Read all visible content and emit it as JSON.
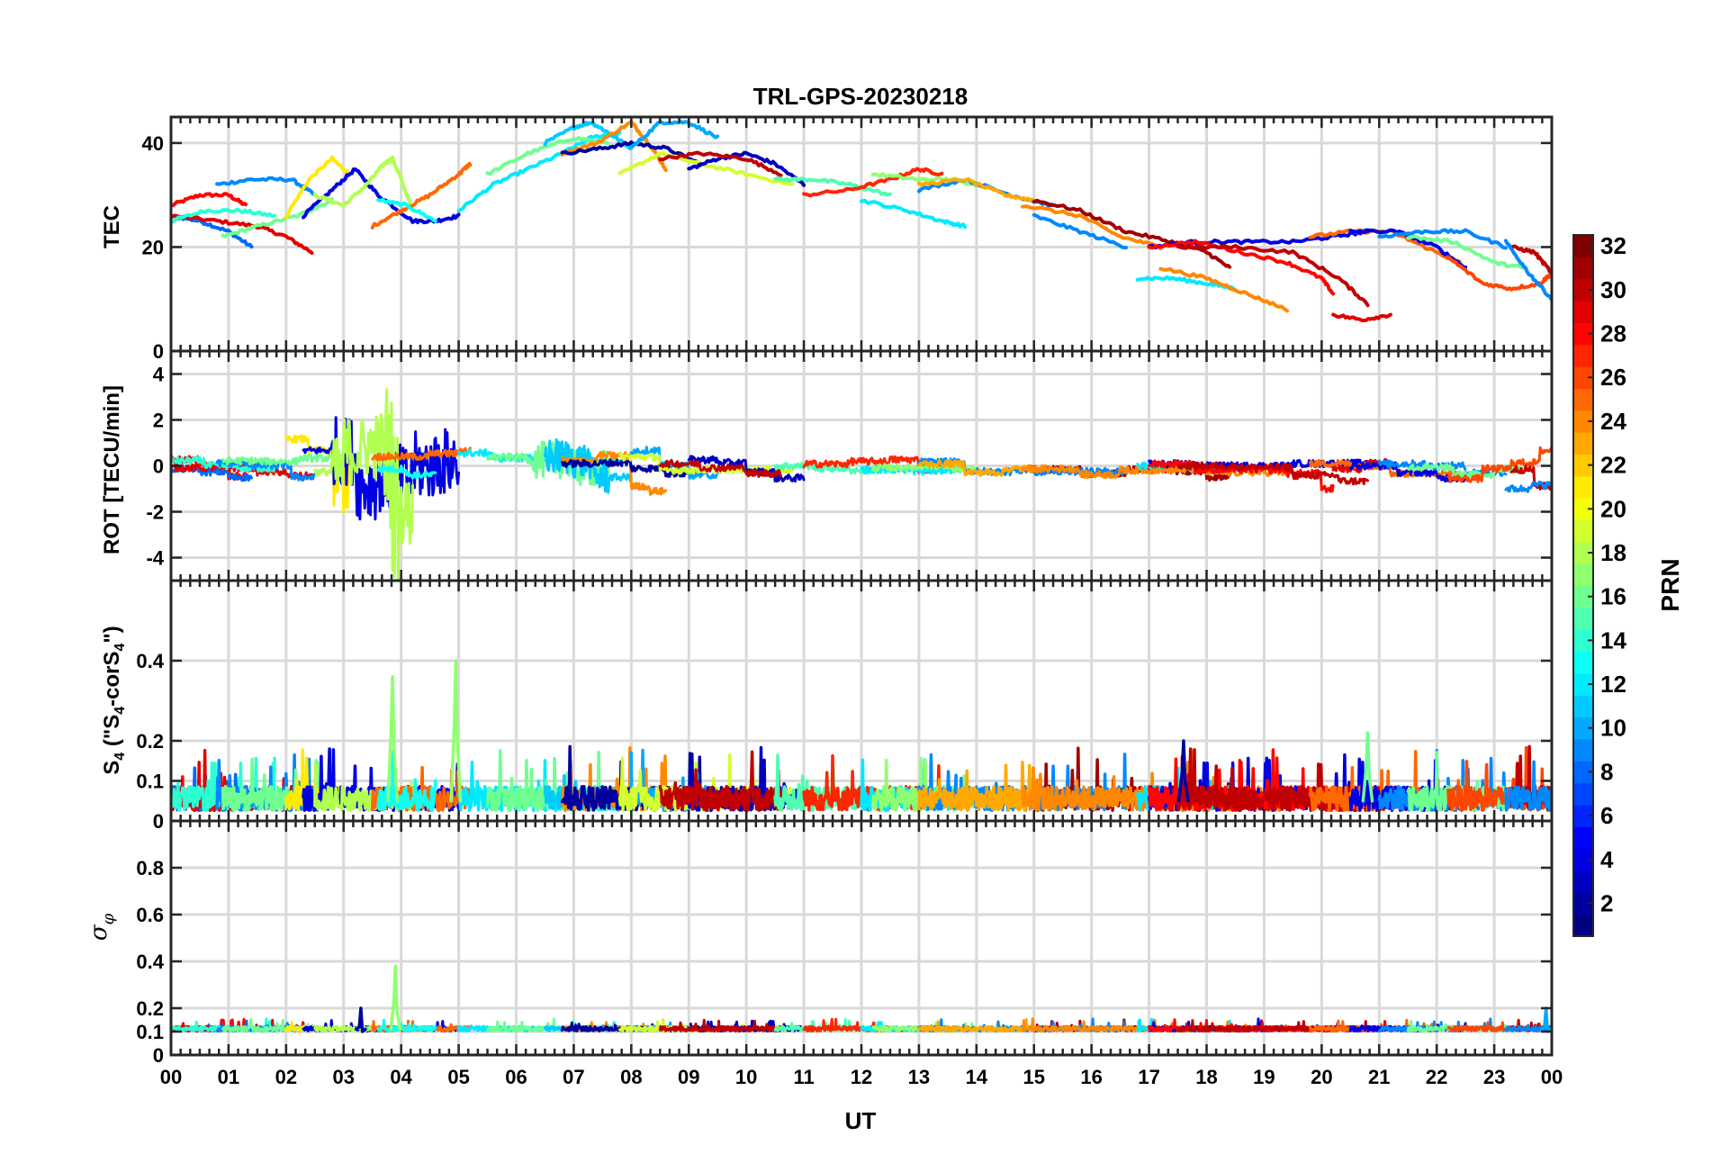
{
  "figure": {
    "title": "TRL-GPS-20230218",
    "xlabel": "UT",
    "x_ticklabels": [
      "00",
      "01",
      "02",
      "03",
      "04",
      "05",
      "06",
      "07",
      "08",
      "09",
      "10",
      "11",
      "12",
      "13",
      "14",
      "15",
      "16",
      "17",
      "18",
      "19",
      "20",
      "21",
      "22",
      "23",
      "00"
    ]
  },
  "colorbar": {
    "label": "PRN",
    "colormap": "jet",
    "range": [
      1,
      32
    ],
    "ticklabels": [
      "2",
      "4",
      "6",
      "8",
      "10",
      "12",
      "14",
      "16",
      "18",
      "20",
      "22",
      "24",
      "26",
      "28",
      "30",
      "32"
    ],
    "tickvalues": [
      2,
      4,
      6,
      8,
      10,
      12,
      14,
      16,
      18,
      20,
      22,
      24,
      26,
      28,
      30,
      32
    ]
  },
  "chart_data": [
    {
      "type": "line",
      "ylabel": "TEC",
      "xlim": [
        0,
        24
      ],
      "ylim": [
        0,
        45
      ],
      "yticks": [
        0,
        20,
        40
      ],
      "grid": true,
      "series": [
        {
          "prn": 28,
          "x": [
            0.0,
            0.5,
            1.0,
            1.3
          ],
          "y": [
            28,
            30,
            30,
            28
          ]
        },
        {
          "prn": 8,
          "x": [
            0.0,
            0.5,
            1.0,
            1.4
          ],
          "y": [
            26,
            25,
            23,
            20
          ]
        },
        {
          "prn": 29,
          "x": [
            0.0,
            0.8,
            1.5,
            2.0,
            2.45
          ],
          "y": [
            26,
            25,
            24,
            22,
            19
          ]
        },
        {
          "prn": 14,
          "x": [
            0.0,
            0.6,
            1.2,
            1.8
          ],
          "y": [
            25,
            27,
            27,
            26
          ]
        },
        {
          "prn": 9,
          "x": [
            0.8,
            1.4,
            2.1,
            2.5
          ],
          "y": [
            32,
            33,
            33,
            30
          ]
        },
        {
          "prn": 16,
          "x": [
            0.9,
            1.5,
            2.2,
            2.8
          ],
          "y": [
            22,
            24,
            26,
            29
          ]
        },
        {
          "prn": 21,
          "x": [
            2.0,
            2.4,
            2.8,
            3.1
          ],
          "y": [
            26,
            33,
            37,
            34
          ]
        },
        {
          "prn": 4,
          "x": [
            2.3,
            2.8,
            3.2,
            3.6,
            4.2,
            4.6,
            5.0
          ],
          "y": [
            26,
            31,
            35,
            30,
            25,
            25,
            26
          ]
        },
        {
          "prn": 18,
          "x": [
            2.5,
            3.0,
            3.4,
            3.7,
            3.85,
            4.0,
            4.2
          ],
          "y": [
            30,
            28,
            32,
            36,
            37,
            33,
            27
          ]
        },
        {
          "prn": 25,
          "x": [
            3.5,
            4.0,
            4.5,
            5.0,
            5.2
          ],
          "y": [
            24,
            27,
            30,
            34,
            36
          ]
        },
        {
          "prn": 13,
          "x": [
            3.6,
            4.1,
            4.6
          ],
          "y": [
            29,
            28,
            25
          ]
        },
        {
          "prn": 12,
          "x": [
            5.0,
            5.6,
            6.2,
            6.8,
            7.3,
            7.8
          ],
          "y": [
            27,
            32,
            35,
            38,
            41,
            42
          ]
        },
        {
          "prn": 16,
          "x": [
            5.5,
            6.2,
            7.0,
            7.6
          ],
          "y": [
            34,
            38,
            41,
            40
          ]
        },
        {
          "prn": 11,
          "x": [
            6.5,
            7.0,
            7.3,
            7.6,
            8.0
          ],
          "y": [
            40,
            43,
            44,
            42,
            39
          ]
        },
        {
          "prn": 24,
          "x": [
            6.8,
            7.4,
            8.0,
            8.3,
            8.6
          ],
          "y": [
            38,
            40,
            44,
            40,
            35
          ]
        },
        {
          "prn": 2,
          "x": [
            6.8,
            7.5,
            8.0,
            8.6,
            9.2
          ],
          "y": [
            38,
            39,
            40,
            39,
            36
          ]
        },
        {
          "prn": 10,
          "x": [
            8.0,
            8.5,
            9.0,
            9.5
          ],
          "y": [
            39,
            44,
            44,
            41
          ]
        },
        {
          "prn": 19,
          "x": [
            7.8,
            8.5,
            9.2,
            10.0,
            10.8
          ],
          "y": [
            34,
            38,
            36,
            34,
            32
          ]
        },
        {
          "prn": 3,
          "x": [
            9.0,
            9.5,
            10.0,
            10.5,
            11.0
          ],
          "y": [
            35,
            37,
            38,
            36,
            32
          ]
        },
        {
          "prn": 30,
          "x": [
            8.5,
            9.2,
            10.0,
            10.6
          ],
          "y": [
            37,
            38,
            37,
            34
          ]
        },
        {
          "prn": 15,
          "x": [
            10.5,
            11.2,
            11.8,
            12.5
          ],
          "y": [
            33,
            33,
            32,
            30
          ]
        },
        {
          "prn": 27,
          "x": [
            11.0,
            11.8,
            12.5,
            13.0,
            13.4
          ],
          "y": [
            30,
            31,
            33,
            35,
            34
          ]
        },
        {
          "prn": 12,
          "x": [
            12.0,
            12.8,
            13.4,
            13.8
          ],
          "y": [
            29,
            27,
            25,
            24
          ]
        },
        {
          "prn": 17,
          "x": [
            12.2,
            13.0,
            13.6,
            14.0
          ],
          "y": [
            34,
            33,
            33,
            32
          ]
        },
        {
          "prn": 9,
          "x": [
            13.0,
            13.8,
            14.6,
            15.3
          ],
          "y": [
            31,
            33,
            30,
            28
          ]
        },
        {
          "prn": 23,
          "x": [
            13.0,
            13.8,
            14.5,
            15.0
          ],
          "y": [
            32,
            33,
            30,
            29
          ]
        },
        {
          "prn": 31,
          "x": [
            15.0,
            15.8,
            16.6,
            17.4,
            18.0,
            18.4
          ],
          "y": [
            29,
            27,
            23,
            21,
            19,
            16
          ]
        },
        {
          "prn": 9,
          "x": [
            15.0,
            15.8,
            16.6
          ],
          "y": [
            26,
            23,
            20
          ]
        },
        {
          "prn": 24,
          "x": [
            14.8,
            15.8,
            16.5,
            17.2
          ],
          "y": [
            28,
            26,
            22,
            20
          ]
        },
        {
          "prn": 12,
          "x": [
            16.8,
            17.4,
            18.0,
            18.5
          ],
          "y": [
            14,
            14,
            13,
            12
          ]
        },
        {
          "prn": 24,
          "x": [
            17.2,
            18.0,
            18.7,
            19.4
          ],
          "y": [
            16,
            14,
            11,
            8
          ]
        },
        {
          "prn": 4,
          "x": [
            17.0,
            17.8,
            18.6,
            19.5,
            20.2,
            20.8
          ],
          "y": [
            20,
            21,
            21,
            21,
            22,
            23
          ]
        },
        {
          "prn": 28,
          "x": [
            17.0,
            17.8,
            18.6,
            19.4,
            20.0,
            20.2
          ],
          "y": [
            20,
            21,
            19,
            17,
            14,
            11
          ]
        },
        {
          "prn": 30,
          "x": [
            17.5,
            18.5,
            19.5,
            20.3,
            20.8
          ],
          "y": [
            20,
            20,
            19,
            14,
            9
          ]
        },
        {
          "prn": 29,
          "x": [
            20.2,
            20.7,
            21.2
          ],
          "y": [
            7,
            6,
            7
          ]
        },
        {
          "prn": 25,
          "x": [
            19.8,
            20.5,
            21.2,
            21.8,
            22.4
          ],
          "y": [
            22,
            23,
            23,
            20,
            17
          ]
        },
        {
          "prn": 4,
          "x": [
            20.5,
            21.3,
            22.0,
            22.5
          ],
          "y": [
            23,
            23,
            20,
            16
          ]
        },
        {
          "prn": 9,
          "x": [
            21.0,
            21.8,
            22.5,
            23.2
          ],
          "y": [
            22,
            23,
            23,
            20
          ]
        },
        {
          "prn": 16,
          "x": [
            21.5,
            22.3,
            23.0,
            23.5
          ],
          "y": [
            22,
            21,
            17,
            16
          ]
        },
        {
          "prn": 26,
          "x": [
            22.2,
            22.8,
            23.3,
            23.8,
            24.0
          ],
          "y": [
            18,
            13,
            12,
            13,
            15
          ]
        },
        {
          "prn": 30,
          "x": [
            23.3,
            23.7,
            24.0
          ],
          "y": [
            20,
            19,
            15
          ]
        },
        {
          "prn": 9,
          "x": [
            23.2,
            23.6,
            24.0
          ],
          "y": [
            21,
            15,
            10
          ]
        }
      ]
    },
    {
      "type": "line",
      "ylabel": "ROT [TECU/min]",
      "xlim": [
        0,
        24
      ],
      "ylim": [
        -5,
        5
      ],
      "yticks": [
        -4,
        -2,
        0,
        2,
        4
      ],
      "grid": true,
      "noise_bursts": [
        {
          "x_range": [
            2.8,
            5.0
          ],
          "amplitude": 1.5,
          "prn": [
            4,
            18,
            21
          ]
        },
        {
          "x_range": [
            3.7,
            3.95
          ],
          "amplitude": 3.4,
          "prn": [
            18
          ]
        },
        {
          "x_range": [
            4.8,
            5.0
          ],
          "amplitude": 1.6,
          "prn": [
            21
          ]
        },
        {
          "x_range": [
            6.3,
            7.6
          ],
          "amplitude": 0.8,
          "prn": [
            11,
            16
          ]
        }
      ]
    },
    {
      "type": "line",
      "ylabel": "S4 (\"S4-corS4\")",
      "xlim": [
        0,
        24
      ],
      "ylim": [
        0,
        0.6
      ],
      "yticks": [
        0,
        0.1,
        0.2,
        0.4
      ],
      "grid": true,
      "peaks": [
        {
          "x": 3.85,
          "y": 0.36,
          "prn": 17
        },
        {
          "x": 4.95,
          "y": 0.4,
          "prn": 17
        },
        {
          "x": 17.6,
          "y": 0.2,
          "prn": 2
        },
        {
          "x": 20.8,
          "y": 0.22,
          "prn": 16
        }
      ]
    },
    {
      "type": "line",
      "ylabel": "σφ",
      "xlim": [
        0,
        24
      ],
      "ylim": [
        0,
        1
      ],
      "yticks": [
        0,
        0.1,
        0.2,
        0.4,
        0.6,
        0.8
      ],
      "grid": true,
      "peaks": [
        {
          "x": 3.9,
          "y": 0.38,
          "prn": 17
        },
        {
          "x": 3.3,
          "y": 0.2,
          "prn": 2
        },
        {
          "x": 23.9,
          "y": 0.2,
          "prn": 10
        }
      ]
    }
  ]
}
